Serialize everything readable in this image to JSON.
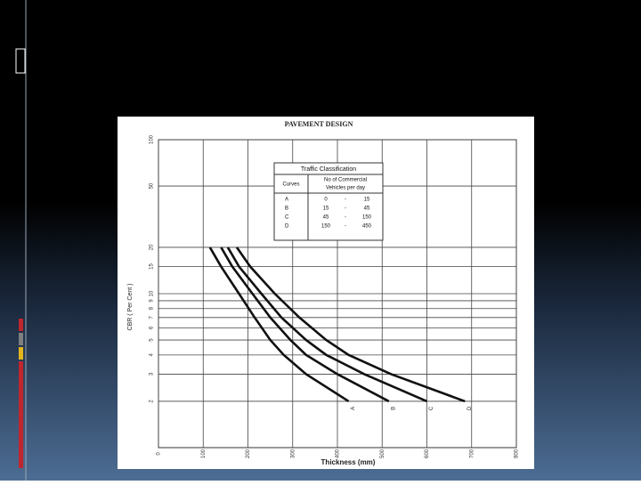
{
  "chart_data": {
    "type": "line",
    "title": "PAVEMENT DESIGN",
    "xlabel": "Thickness (mm)",
    "ylabel": "CBR ( Per Cent )",
    "xlim": [
      0,
      800
    ],
    "xticks": [
      0,
      100,
      200,
      300,
      400,
      500,
      600,
      700,
      800
    ],
    "ylim": [
      1,
      100
    ],
    "ylog": true,
    "yticks": [
      2,
      3,
      4,
      5,
      6,
      7,
      8,
      9,
      10,
      15,
      20,
      50,
      100
    ],
    "grid": true,
    "color": "#111111",
    "series": [
      {
        "name": "A",
        "x": [
          115,
          140,
          180,
          215,
          250,
          280,
          330,
          425
        ],
        "values": [
          20,
          15,
          10,
          7,
          5,
          4,
          3,
          2
        ]
      },
      {
        "name": "B",
        "x": [
          140,
          165,
          210,
          250,
          295,
          330,
          400,
          515
        ],
        "values": [
          20,
          15,
          10,
          7,
          5,
          4,
          3,
          2
        ]
      },
      {
        "name": "C",
        "x": [
          155,
          180,
          230,
          275,
          330,
          375,
          460,
          600
        ],
        "values": [
          20,
          15,
          10,
          7,
          5,
          4,
          3,
          2
        ]
      },
      {
        "name": "D",
        "x": [
          175,
          205,
          260,
          315,
          375,
          425,
          520,
          685
        ],
        "values": [
          20,
          15,
          10,
          7,
          5,
          4,
          3,
          2
        ]
      }
    ],
    "legend_table": {
      "title": "Traffic Classification",
      "headers": [
        "Curves",
        "No of Commercial",
        "Vehicles per day"
      ],
      "rows": [
        [
          "A",
          "0",
          "-",
          "15"
        ],
        [
          "B",
          "15",
          "-",
          "45"
        ],
        [
          "C",
          "45",
          "-",
          "150"
        ],
        [
          "D",
          "150",
          "-",
          "450"
        ]
      ]
    }
  }
}
